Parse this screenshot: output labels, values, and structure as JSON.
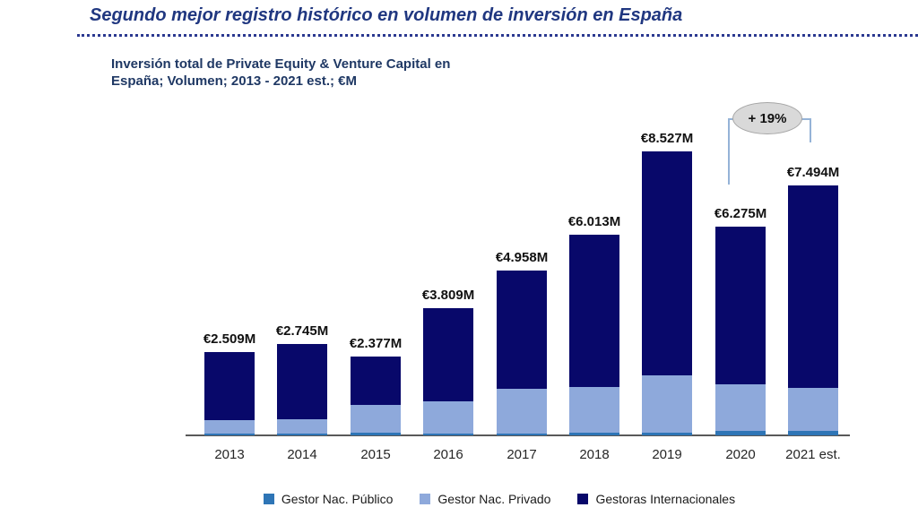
{
  "page": {
    "title": "Segundo mejor registro histórico en volumen de inversión en España",
    "subtitle_line1": "Inversión total de Private Equity & Venture Capital en",
    "subtitle_line2": "España; Volumen; 2013 - 2021 est.; €M"
  },
  "colors": {
    "title_blue": "#203780",
    "subtitle_blue": "#1F3864",
    "axis_gray": "#595959",
    "bracket_blue": "#95B3D7",
    "annotation_fill": "#D9D9D9",
    "annotation_border": "#A6A6A6"
  },
  "chart_data": {
    "type": "bar",
    "stacked": true,
    "title": "Inversión total de Private Equity & Venture Capital en España; Volumen; 2013 - 2021 est.; €M",
    "unit": "€M",
    "categories": [
      "2013",
      "2014",
      "2015",
      "2016",
      "2017",
      "2018",
      "2019",
      "2020",
      "2021 est."
    ],
    "series": [
      {
        "name": "Gestor Nac. Público",
        "color": "#2E75B6",
        "values": [
          55,
          55,
          80,
          55,
          55,
          80,
          80,
          135,
          135
        ]
      },
      {
        "name": "Gestor Nac. Privado",
        "color": "#8EA9DB",
        "values": [
          405,
          430,
          835,
          970,
          1345,
          1370,
          1720,
          1400,
          1290
        ]
      },
      {
        "name": "Gestoras Internacionales",
        "color": "#08086A",
        "values": [
          2049,
          2260,
          1462,
          2784,
          3558,
          4563,
          6727,
          4740,
          6069
        ]
      }
    ],
    "totals": [
      2509,
      2745,
      2377,
      3809,
      4958,
      6013,
      8527,
      6275,
      7494
    ],
    "total_labels": [
      "€2.509M",
      "€2.745M",
      "€2.377M",
      "€3.809M",
      "€4.958M",
      "€6.013M",
      "€8.527M",
      "€6.275M",
      "€7.494M"
    ],
    "annotation": {
      "text": "+ 19%",
      "from_category": "2020",
      "to_category": "2021 est."
    },
    "legend_position": "bottom",
    "ylim": [
      0,
      9000
    ],
    "gridlines": false
  }
}
